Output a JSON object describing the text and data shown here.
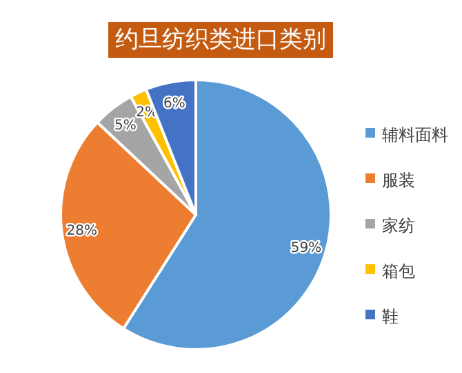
{
  "chart_data": {
    "type": "pie",
    "title": "约旦纺织类进口类别",
    "categories": [
      "辅料面料",
      "服装",
      "家纺",
      "箱包",
      "鞋"
    ],
    "values": [
      59,
      28,
      5,
      2,
      6
    ],
    "value_labels": [
      "59%",
      "28%",
      "5%",
      "2%",
      "6%"
    ],
    "colors": [
      "#5b9bd5",
      "#ed7d31",
      "#a5a5a5",
      "#ffc000",
      "#4472c4"
    ],
    "legend": "right"
  }
}
